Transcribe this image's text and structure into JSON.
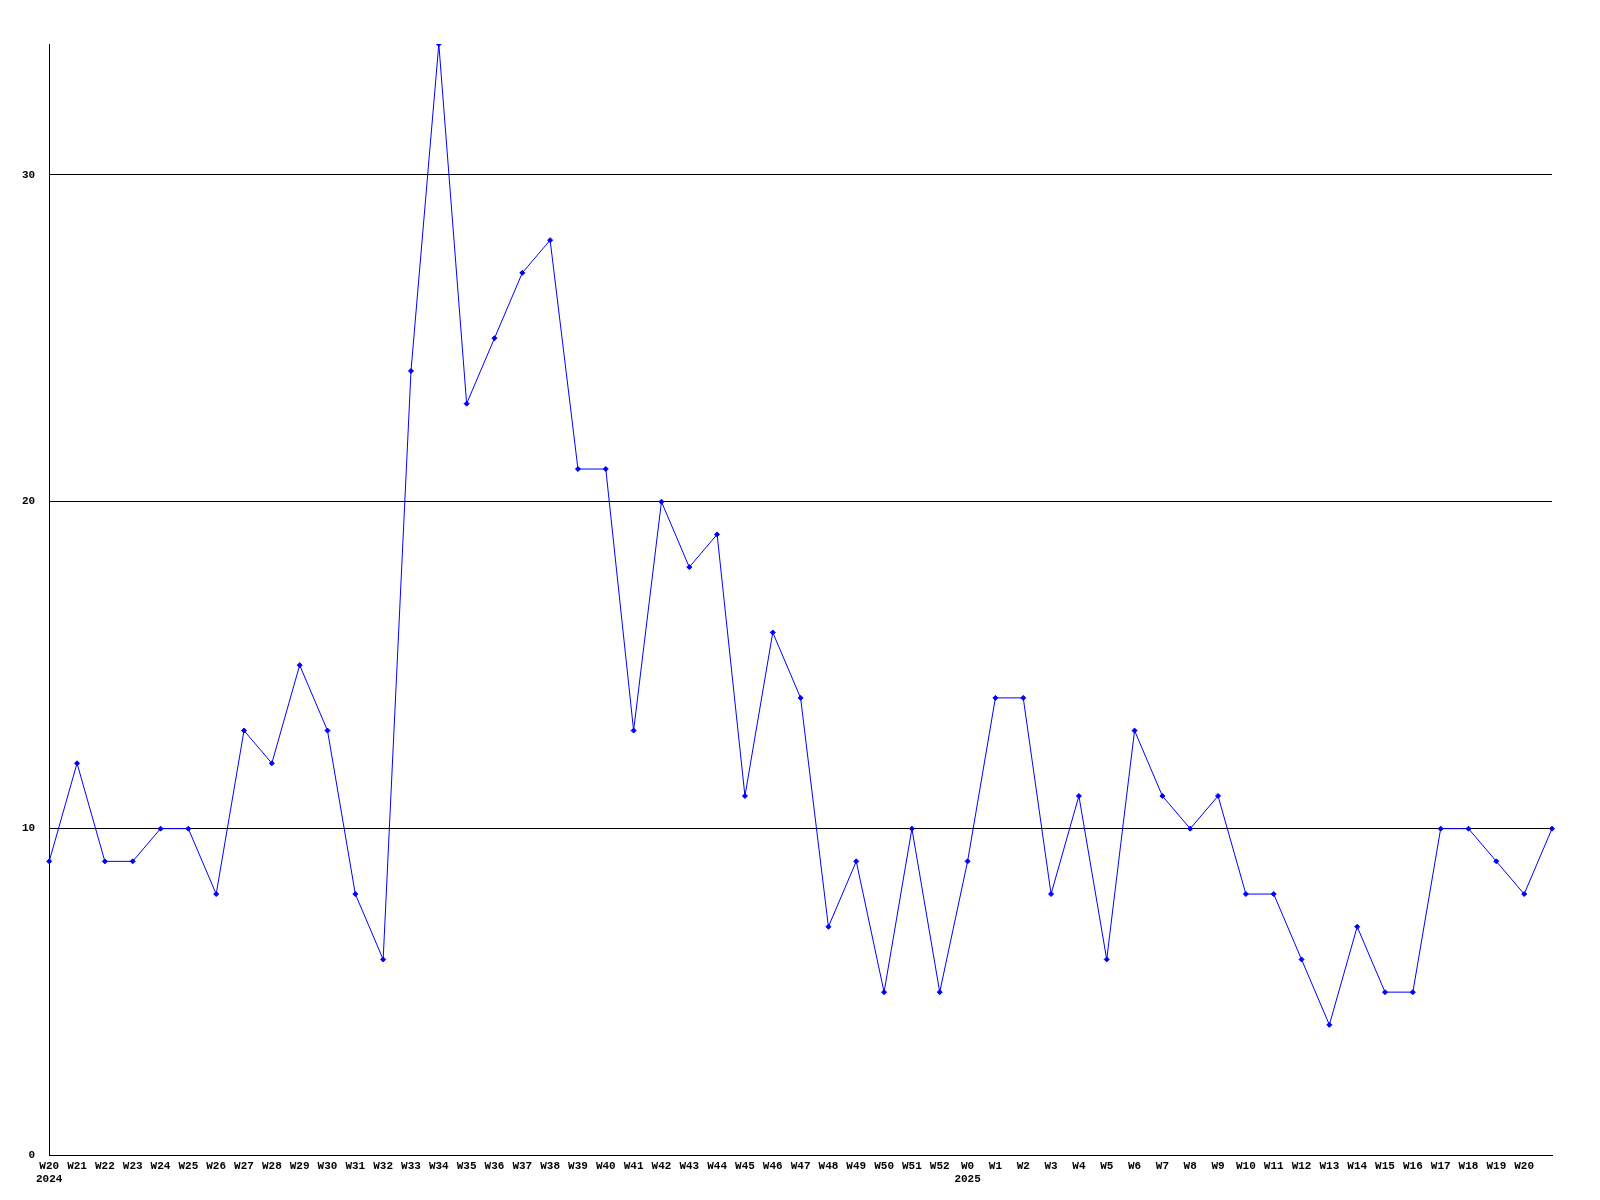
{
  "chart_data": {
    "type": "line",
    "categories": [
      "W20\n2024",
      "W21",
      "W22",
      "W23",
      "W24",
      "W25",
      "W26",
      "W27",
      "W28",
      "W29",
      "W30",
      "W31",
      "W32",
      "W33",
      "W34",
      "W35",
      "W36",
      "W37",
      "W38",
      "W39",
      "W40",
      "W41",
      "W42",
      "W43",
      "W44",
      "W45",
      "W46",
      "W47",
      "W48",
      "W49",
      "W50",
      "W51",
      "W52",
      "W0\n2025",
      "W1",
      "W2",
      "W3",
      "W4",
      "W5",
      "W6",
      "W7",
      "W8",
      "W9",
      "W10",
      "W11",
      "W12",
      "W13",
      "W14",
      "W15",
      "W16",
      "W17",
      "W18",
      "W19",
      "W20",
      null
    ],
    "series": [
      {
        "color": "#0000ff",
        "values": [
          9,
          12,
          9,
          9,
          10,
          10,
          8,
          13,
          12,
          15,
          13,
          8,
          6,
          24,
          34,
          23,
          25,
          27,
          28,
          21,
          21,
          13,
          20,
          18,
          19,
          11,
          16,
          14,
          7,
          9,
          5,
          10,
          5,
          9,
          14,
          14,
          8,
          11,
          6,
          13,
          11,
          10,
          11,
          8,
          8,
          6,
          4,
          7,
          5,
          5,
          10,
          10,
          9,
          8,
          10
        ]
      }
    ],
    "ylim": [
      0,
      34
    ],
    "yticks": [
      0,
      10,
      20,
      30
    ],
    "grid": "y",
    "legend": false,
    "marker": "diamond",
    "line_style": "solid"
  }
}
